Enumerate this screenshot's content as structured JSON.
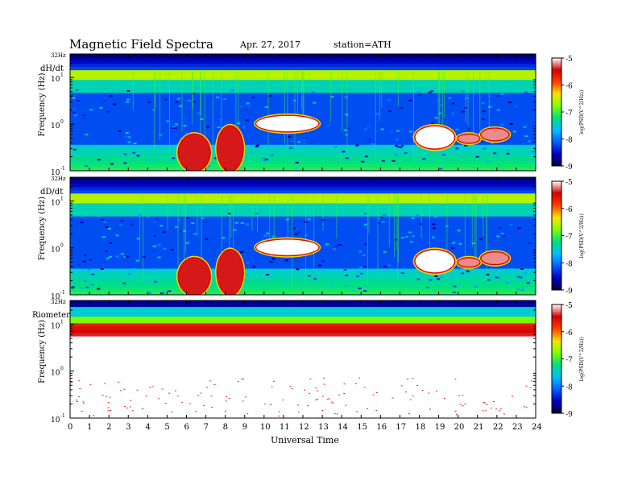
{
  "header": {
    "title": "Magnetic  Field  Spectra",
    "date": "Apr. 27, 2017",
    "station": "station=ATH"
  },
  "chart_data": {
    "type": "heatmap",
    "xlabel": "Universal Time",
    "x_ticks": [
      "0",
      "1",
      "2",
      "3",
      "4",
      "5",
      "6",
      "7",
      "8",
      "9",
      "10",
      "11",
      "12",
      "13",
      "14",
      "15",
      "16",
      "17",
      "18",
      "19",
      "20",
      "21",
      "22",
      "23",
      "24"
    ],
    "xlim": [
      0,
      24
    ],
    "ylabel": "Frequency  (Hz)",
    "y_scale": "log",
    "ylim_hz": [
      0.1,
      32
    ],
    "y_tick_labels": [
      "32Hz",
      "10",
      "10",
      "10"
    ],
    "y_tick_exponents": [
      "",
      "1",
      "0",
      "-1"
    ],
    "colorbar": {
      "label": "log(PSD(V^2/Hz))",
      "range": [
        -9,
        -5
      ],
      "tick_labels": [
        "-5",
        "-6",
        "-7",
        "-8",
        "-9"
      ],
      "colormap": [
        "#000040",
        "#0000c0",
        "#0060ff",
        "#00c0ff",
        "#00e080",
        "#80ff00",
        "#ffe000",
        "#ff4000",
        "#d00000",
        "#ffffff"
      ]
    },
    "panels": [
      {
        "label": "dH/dt",
        "background_level": -8.1,
        "events": [
          {
            "t_start": 5.6,
            "t_end": 7.2,
            "f_low": 0.1,
            "f_high": 0.6,
            "level": -5.4
          },
          {
            "t_start": 7.6,
            "t_end": 8.9,
            "f_low": 0.1,
            "f_high": 0.9,
            "level": -5.4
          },
          {
            "t_start": 9.6,
            "t_end": 12.8,
            "f_low": 0.7,
            "f_high": 1.5,
            "level": -5.0
          },
          {
            "t_start": 17.8,
            "t_end": 19.8,
            "f_low": 0.3,
            "f_high": 0.9,
            "level": -5.0
          },
          {
            "t_start": 20.0,
            "t_end": 21.1,
            "f_low": 0.4,
            "f_high": 0.6,
            "level": -5.2
          },
          {
            "t_start": 21.2,
            "t_end": 22.6,
            "f_low": 0.45,
            "f_high": 0.8,
            "level": -5.2
          }
        ]
      },
      {
        "label": "dD/dt",
        "background_level": -8.1,
        "events": [
          {
            "t_start": 5.6,
            "t_end": 7.2,
            "f_low": 0.1,
            "f_high": 0.6,
            "level": -5.4
          },
          {
            "t_start": 7.6,
            "t_end": 8.9,
            "f_low": 0.1,
            "f_high": 0.9,
            "level": -5.4
          },
          {
            "t_start": 9.6,
            "t_end": 12.8,
            "f_low": 0.7,
            "f_high": 1.5,
            "level": -5.0
          },
          {
            "t_start": 17.8,
            "t_end": 19.8,
            "f_low": 0.3,
            "f_high": 0.9,
            "level": -5.0
          },
          {
            "t_start": 20.0,
            "t_end": 21.1,
            "f_low": 0.4,
            "f_high": 0.6,
            "level": -5.2
          },
          {
            "t_start": 21.2,
            "t_end": 22.6,
            "f_low": 0.45,
            "f_high": 0.8,
            "level": -5.2
          }
        ]
      },
      {
        "label": "Riometer",
        "background_level": -5.0,
        "events": []
      }
    ]
  }
}
